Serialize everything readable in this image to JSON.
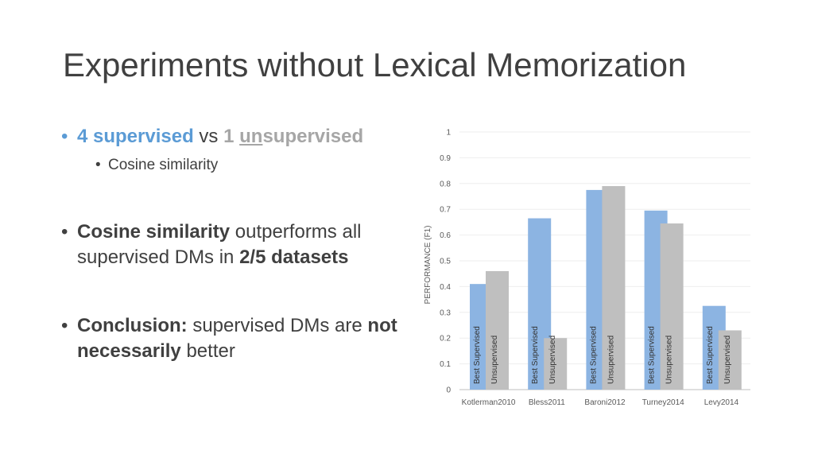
{
  "slide": {
    "title": "Experiments without Lexical Memorization",
    "bullets": {
      "b1": {
        "part1": "4 supervised",
        "part2": " vs ",
        "part3": "1 ",
        "part4": "un",
        "part5": "supervised"
      },
      "b1_sub": "Cosine similarity",
      "b2": {
        "part1": "Cosine similarity",
        "part2": " outperforms all supervised DMs in ",
        "part3": "2/5 datasets"
      },
      "b3": {
        "part1": "Conclusion:",
        "part2": " supervised DMs are ",
        "part3": "not necessarily",
        "part4": " better"
      }
    },
    "bullet_glyph": "•"
  },
  "chart_data": {
    "type": "bar",
    "ylabel": "PERFORMANCE (F1)",
    "ylim": [
      0,
      1
    ],
    "yticks": [
      "0",
      "0.1",
      "0.2",
      "0.3",
      "0.4",
      "0.5",
      "0.6",
      "0.7",
      "0.8",
      "0.9",
      "1"
    ],
    "grid": true,
    "categories": [
      "Kotlerman2010",
      "Bless2011",
      "Baroni2012",
      "Turney2014",
      "Levy2014"
    ],
    "series": [
      {
        "name": "Best Supervised",
        "color": "#8cb4e2",
        "values": [
          0.41,
          0.665,
          0.775,
          0.695,
          0.325
        ]
      },
      {
        "name": "Unsupervised",
        "color": "#bfbfbf",
        "values": [
          0.46,
          0.2,
          0.79,
          0.645,
          0.23
        ]
      }
    ]
  }
}
